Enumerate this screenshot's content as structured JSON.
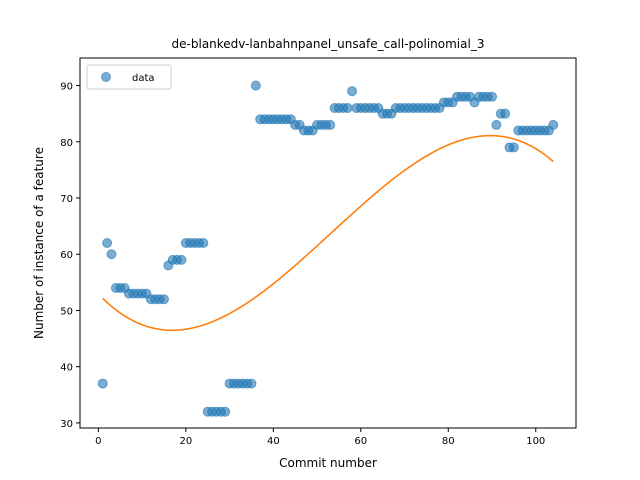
{
  "chart_data": {
    "type": "scatter",
    "title": "de-blankedv-lanbahnpanel_unsafe_call-polinomial_3",
    "xlabel": "Commit number",
    "ylabel": "Number of instance of a feature",
    "xlim": [
      -4.2,
      109.2
    ],
    "ylim": [
      29.1,
      94.9
    ],
    "xticks": [
      0,
      20,
      40,
      60,
      80,
      100
    ],
    "yticks": [
      30,
      40,
      50,
      60,
      70,
      80,
      90
    ],
    "grid": false,
    "legend": {
      "placement": "upper-left",
      "entries": [
        "data"
      ]
    },
    "series": [
      {
        "name": "data",
        "kind": "scatter",
        "color": "#1f77b4",
        "alpha": 0.6,
        "x": [
          1,
          2,
          3,
          4,
          5,
          6,
          7,
          8,
          9,
          10,
          11,
          12,
          13,
          14,
          15,
          16,
          17,
          18,
          19,
          20,
          21,
          22,
          23,
          24,
          25,
          26,
          27,
          28,
          29,
          30,
          31,
          32,
          33,
          34,
          35,
          36,
          37,
          38,
          39,
          40,
          41,
          42,
          43,
          44,
          45,
          46,
          47,
          48,
          49,
          50,
          51,
          52,
          53,
          54,
          55,
          56,
          57,
          58,
          59,
          60,
          61,
          62,
          63,
          64,
          65,
          66,
          67,
          68,
          69,
          70,
          71,
          72,
          73,
          74,
          75,
          76,
          77,
          78,
          79,
          80,
          81,
          82,
          83,
          84,
          85,
          86,
          87,
          88,
          89,
          90,
          91,
          92,
          93,
          94,
          95,
          96,
          97,
          98,
          99,
          100,
          101,
          102,
          103,
          104
        ],
        "y": [
          37,
          62,
          60,
          54,
          54,
          54,
          53,
          53,
          53,
          53,
          53,
          52,
          52,
          52,
          52,
          58,
          59,
          59,
          59,
          62,
          62,
          62,
          62,
          62,
          32,
          32,
          32,
          32,
          32,
          37,
          37,
          37,
          37,
          37,
          37,
          90,
          84,
          84,
          84,
          84,
          84,
          84,
          84,
          84,
          83,
          83,
          82,
          82,
          82,
          83,
          83,
          83,
          83,
          86,
          86,
          86,
          86,
          89,
          86,
          86,
          86,
          86,
          86,
          86,
          85,
          85,
          85,
          86,
          86,
          86,
          86,
          86,
          86,
          86,
          86,
          86,
          86,
          86,
          87,
          87,
          87,
          88,
          88,
          88,
          88,
          87,
          88,
          88,
          88,
          88,
          83,
          85,
          85,
          79,
          79,
          82,
          82,
          82,
          82,
          82,
          82,
          82,
          82,
          83
        ]
      },
      {
        "name": "",
        "kind": "line",
        "color": "#ff7f0e",
        "x_range": [
          1,
          104
        ],
        "poly_coefficients_descending": [
          -0.00018,
          0.02875,
          -0.8167,
          52.94
        ]
      }
    ]
  }
}
